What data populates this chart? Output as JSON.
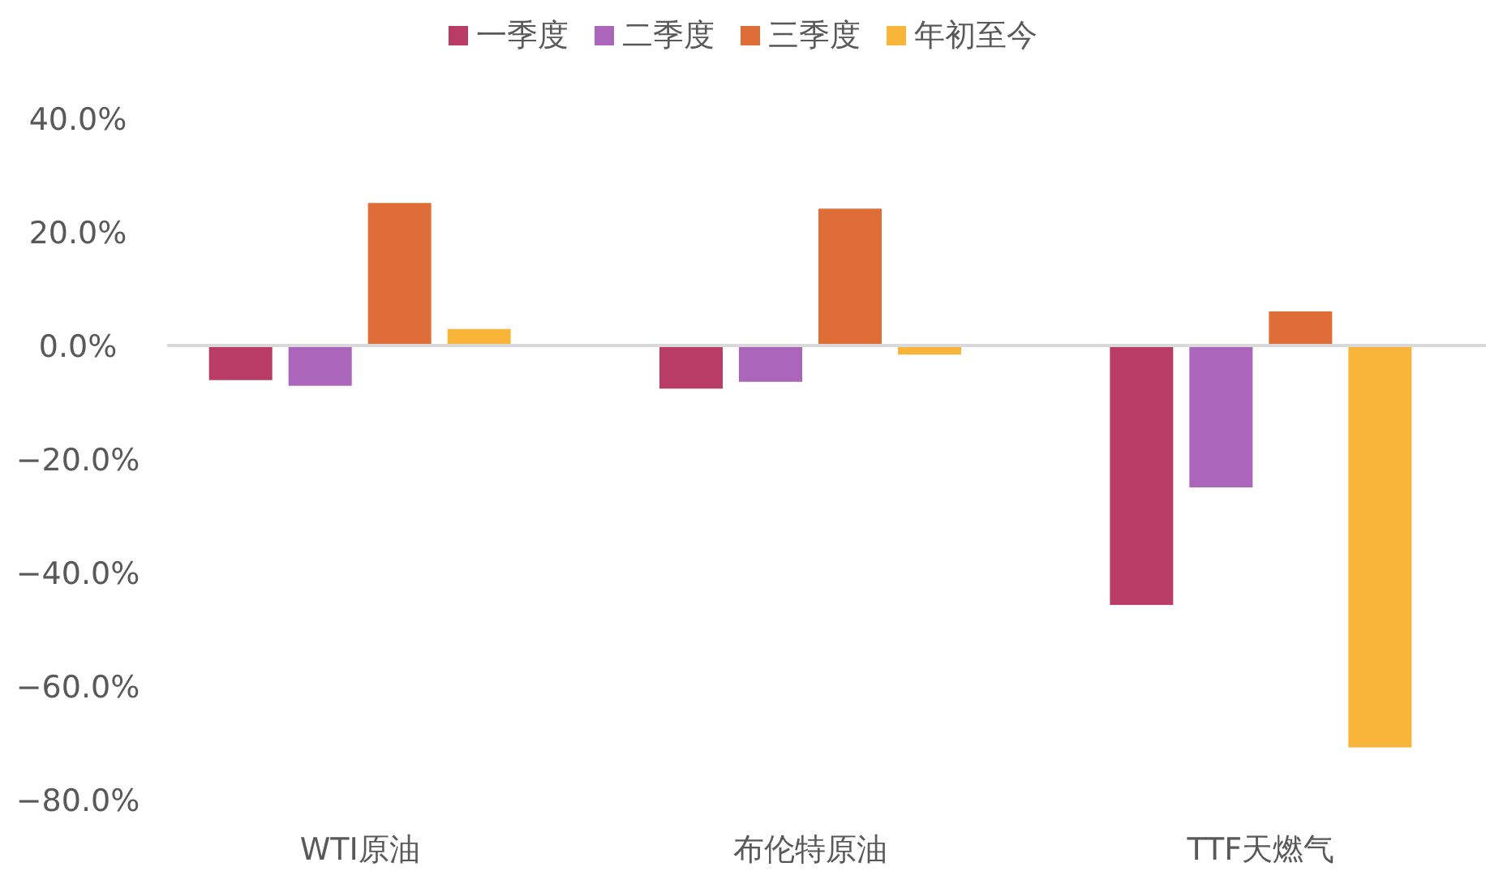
{
  "chart_data": {
    "type": "bar",
    "categories": [
      "WTI原油",
      "布伦特原油",
      "TTF天燃气"
    ],
    "series": [
      {
        "name": "一季度",
        "color": "#b83c65",
        "values": [
          -6.1,
          -7.6,
          -45.7
        ]
      },
      {
        "name": "二季度",
        "color": "#ab66bc",
        "values": [
          -7.1,
          -6.4,
          -25.0
        ]
      },
      {
        "name": "三季度",
        "color": "#de6d37",
        "values": [
          25.1,
          24.1,
          6.0
        ]
      },
      {
        "name": "年初至今",
        "color": "#f8b53a",
        "values": [
          2.9,
          -1.6,
          -70.8
        ]
      }
    ],
    "ylim": [
      -80,
      40
    ],
    "yticks": [
      {
        "value": -80,
        "label": "−80.0%"
      },
      {
        "value": -60,
        "label": "−60.0%"
      },
      {
        "value": -40,
        "label": "−40.0%"
      },
      {
        "value": -20,
        "label": "−20.0%"
      },
      {
        "value": 0,
        "label": "0.0%"
      },
      {
        "value": 20,
        "label": "20.0%"
      },
      {
        "value": 40,
        "label": "40.0%"
      }
    ],
    "ref_lines": [
      {
        "axis": "y",
        "value": 0,
        "color": "#d9d9d9"
      }
    ],
    "grid": false,
    "legend": "top"
  }
}
